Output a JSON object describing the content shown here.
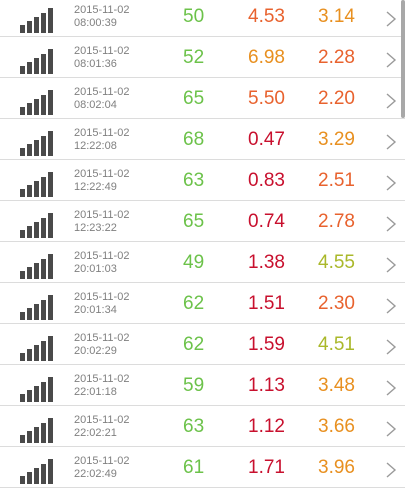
{
  "colors": {
    "green": "#6cc24a",
    "orange_red": "#e8622e",
    "red": "#c8102e",
    "amber": "#e89020",
    "yellow_green": "#aab82a",
    "signal": "#4a4a4a",
    "chevron": "#9a9a9a"
  },
  "rows": [
    {
      "date": "2015-11-02",
      "time": "08:00:39",
      "ping": "50",
      "download": "4.53",
      "upload": "3.14",
      "ping_color": "#6cc24a",
      "download_color": "#e8622e",
      "upload_color": "#e89020"
    },
    {
      "date": "2015-11-02",
      "time": "08:01:36",
      "ping": "52",
      "download": "6.98",
      "upload": "2.28",
      "ping_color": "#6cc24a",
      "download_color": "#e89020",
      "upload_color": "#e8622e"
    },
    {
      "date": "2015-11-02",
      "time": "08:02:04",
      "ping": "65",
      "download": "5.50",
      "upload": "2.20",
      "ping_color": "#6cc24a",
      "download_color": "#e8622e",
      "upload_color": "#e8622e"
    },
    {
      "date": "2015-11-02",
      "time": "12:22:08",
      "ping": "68",
      "download": "0.47",
      "upload": "3.29",
      "ping_color": "#6cc24a",
      "download_color": "#c8102e",
      "upload_color": "#e89020"
    },
    {
      "date": "2015-11-02",
      "time": "12:22:49",
      "ping": "63",
      "download": "0.83",
      "upload": "2.51",
      "ping_color": "#6cc24a",
      "download_color": "#c8102e",
      "upload_color": "#e8622e"
    },
    {
      "date": "2015-11-02",
      "time": "12:23:22",
      "ping": "65",
      "download": "0.74",
      "upload": "2.78",
      "ping_color": "#6cc24a",
      "download_color": "#c8102e",
      "upload_color": "#e8622e"
    },
    {
      "date": "2015-11-02",
      "time": "20:01:03",
      "ping": "49",
      "download": "1.38",
      "upload": "4.55",
      "ping_color": "#6cc24a",
      "download_color": "#c8102e",
      "upload_color": "#aab82a"
    },
    {
      "date": "2015-11-02",
      "time": "20:01:34",
      "ping": "62",
      "download": "1.51",
      "upload": "2.30",
      "ping_color": "#6cc24a",
      "download_color": "#c8102e",
      "upload_color": "#e8622e"
    },
    {
      "date": "2015-11-02",
      "time": "20:02:29",
      "ping": "62",
      "download": "1.59",
      "upload": "4.51",
      "ping_color": "#6cc24a",
      "download_color": "#c8102e",
      "upload_color": "#aab82a"
    },
    {
      "date": "2015-11-02",
      "time": "22:01:18",
      "ping": "59",
      "download": "1.13",
      "upload": "3.48",
      "ping_color": "#6cc24a",
      "download_color": "#c8102e",
      "upload_color": "#e89020"
    },
    {
      "date": "2015-11-02",
      "time": "22:02:21",
      "ping": "63",
      "download": "1.12",
      "upload": "3.66",
      "ping_color": "#6cc24a",
      "download_color": "#c8102e",
      "upload_color": "#e89020"
    },
    {
      "date": "2015-11-02",
      "time": "22:02:49",
      "ping": "61",
      "download": "1.71",
      "upload": "3.96",
      "ping_color": "#6cc24a",
      "download_color": "#c8102e",
      "upload_color": "#e89020"
    }
  ]
}
